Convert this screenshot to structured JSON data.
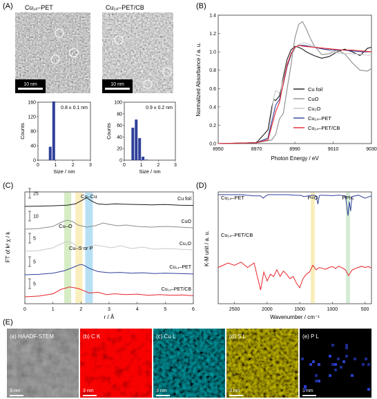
{
  "panel_labels": {
    "A": "(A)",
    "B": "(B)",
    "C": "(C)",
    "D": "(D)",
    "E": "(E)"
  },
  "tem": {
    "left_title": "Cu₁₄–PET",
    "right_title": "Cu₁₄–PET/CB",
    "scalebar": "10 nm"
  },
  "colors": {
    "blue": "#2f3f9a",
    "red": "#e8232a",
    "gray": "#8c8c8c",
    "light": "#c8c8c8",
    "black": "#1a1a1a"
  },
  "chart_data": [
    {
      "type": "bar",
      "title": "",
      "annotation": "0.8 ± 0.1 nm",
      "xlabel": "Size / nm",
      "ylabel": "Counts",
      "xlim": [
        0,
        3
      ],
      "ylim": [
        0,
        160
      ],
      "xticks": [
        "0",
        "1",
        "2",
        "3"
      ],
      "yticks": [
        "0",
        "40",
        "80",
        "120",
        "160"
      ],
      "x": [
        0.7,
        0.9
      ],
      "values": [
        37,
        162
      ]
    },
    {
      "type": "bar",
      "title": "",
      "annotation": "0.9 ± 0.2 nm",
      "xlabel": "Size / nm",
      "ylabel": "Counts",
      "xlim": [
        0,
        3
      ],
      "ylim": [
        0,
        100
      ],
      "xticks": [
        "0",
        "1",
        "2",
        "3"
      ],
      "yticks": [
        "0",
        "20",
        "40",
        "60",
        "80",
        "100"
      ],
      "x": [
        0.5,
        0.7,
        0.9,
        1.1,
        1.3
      ],
      "values": [
        56,
        70,
        38,
        6,
        1
      ]
    },
    {
      "type": "line",
      "xlabel": "Photon Energy / eV",
      "ylabel": "Normalized Absorbance / a. u.",
      "xlim": [
        8950,
        9030
      ],
      "ylim": [
        0,
        1.4
      ],
      "xticks": [
        "8950",
        "8970",
        "8990",
        "9010",
        "9030"
      ],
      "yticks": [
        "0.0",
        "0.2",
        "0.4",
        "0.6",
        "0.8",
        "1.0",
        "1.2",
        "1.4"
      ],
      "legend_position": "bottom-right",
      "series": [
        {
          "name": "Cu foil",
          "color": "#1a1a1a",
          "x": [
            8950,
            8970,
            8976,
            8978,
            8979,
            8980,
            8982,
            8984,
            8986,
            8988,
            8990,
            8992,
            8994,
            8996,
            9000,
            9004,
            9008,
            9012,
            9016,
            9020,
            9024,
            9028,
            9030
          ],
          "y": [
            0,
            0.01,
            0.15,
            0.4,
            0.48,
            0.47,
            0.52,
            0.73,
            0.92,
            1.02,
            1.06,
            1.05,
            1.03,
            1.0,
            0.96,
            0.93,
            0.95,
            1.0,
            1.03,
            1.0,
            0.96,
            1.04,
            1.05
          ]
        },
        {
          "name": "CuO",
          "color": "#8c8c8c",
          "x": [
            8950,
            8970,
            8978,
            8980,
            8982,
            8984,
            8986,
            8988,
            8990,
            8992,
            8994,
            8996,
            8998,
            9000,
            9004,
            9008,
            9012,
            9016,
            9020,
            9024,
            9028,
            9030
          ],
          "y": [
            0,
            0.01,
            0.04,
            0.1,
            0.27,
            0.33,
            0.6,
            0.85,
            1.15,
            1.3,
            1.33,
            1.25,
            1.15,
            1.07,
            0.97,
            0.98,
            1.02,
            0.98,
            0.88,
            0.8,
            0.79,
            0.82
          ]
        },
        {
          "name": "Cu₂O",
          "color": "#c8c8c8",
          "x": [
            8950,
            8970,
            8976,
            8979,
            8980,
            8982,
            8984,
            8986,
            8988,
            8990,
            8992,
            8995,
            9000,
            9005,
            9010,
            9015,
            9020,
            9025,
            9030
          ],
          "y": [
            0,
            0.01,
            0.05,
            0.5,
            0.58,
            0.55,
            0.7,
            0.85,
            0.95,
            1.03,
            1.08,
            1.1,
            1.06,
            1.03,
            1.0,
            0.98,
            0.98,
            0.97,
            0.96
          ]
        },
        {
          "name": "Cu₁₄–PET",
          "color": "#2f3f9a",
          "x": [
            8950,
            8970,
            8976,
            8980,
            8982,
            8984,
            8986,
            8988,
            8990,
            8992,
            8995,
            9000,
            9005,
            9010,
            9015,
            9020,
            9025,
            9030
          ],
          "y": [
            0,
            0.01,
            0.06,
            0.42,
            0.48,
            0.65,
            0.84,
            0.97,
            1.05,
            1.07,
            1.07,
            1.05,
            1.03,
            1.02,
            1.02,
            1.01,
            1.0,
            1.0
          ]
        },
        {
          "name": "Cu₁₄–PET/CB",
          "color": "#e8232a",
          "x": [
            8950,
            8970,
            8976,
            8980,
            8982,
            8984,
            8986,
            8988,
            8990,
            8992,
            8995,
            9000,
            9005,
            9010,
            9015,
            9020,
            9025,
            9030
          ],
          "y": [
            0,
            0.01,
            0.04,
            0.35,
            0.45,
            0.66,
            0.86,
            0.98,
            1.05,
            1.07,
            1.06,
            1.05,
            1.04,
            1.03,
            1.02,
            1.02,
            1.01,
            1.0
          ]
        }
      ]
    },
    {
      "type": "line",
      "xlabel": "r / Å",
      "ylabel": "FT of k² χ / k",
      "xlim": [
        0,
        6
      ],
      "xticks": [
        "0",
        "1",
        "2",
        "3",
        "4",
        "5",
        "6"
      ],
      "bands": [
        {
          "label": "Cu–O",
          "from": 1.4,
          "to": 1.65,
          "color": "#c8e6b0"
        },
        {
          "label": "Cu–S or P",
          "from": 1.8,
          "to": 2.05,
          "color": "#f8e8a8"
        },
        {
          "label": "Cu–Cu",
          "from": 2.15,
          "to": 2.42,
          "color": "#9fd6f0"
        }
      ],
      "scale_labels": [
        "25",
        "10",
        "5",
        "5",
        "5"
      ],
      "series": [
        {
          "name": "Cu foil",
          "color": "#1a1a1a",
          "x": [
            0,
            0.5,
            1.0,
            1.5,
            1.8,
            2.0,
            2.2,
            2.4,
            2.6,
            2.9,
            3.2,
            3.6,
            4.0,
            4.5,
            5.0,
            5.5,
            6.0
          ],
          "y": [
            0,
            0.5,
            1,
            2,
            4,
            9,
            14,
            8,
            4,
            3,
            4,
            3.5,
            3,
            2.5,
            3,
            2,
            1.5
          ]
        },
        {
          "name": "CuO",
          "color": "#8c8c8c",
          "x": [
            0,
            0.5,
            1.0,
            1.3,
            1.5,
            1.7,
            1.9,
            2.2,
            2.5,
            2.8,
            3.0,
            3.3,
            3.6,
            4.0,
            4.5,
            5.0,
            5.5,
            6.0
          ],
          "y": [
            0,
            1,
            4,
            10,
            13,
            11,
            6,
            3,
            5,
            9,
            7,
            5,
            6,
            4,
            3,
            4,
            3,
            2
          ]
        },
        {
          "name": "Cu₂O",
          "color": "#c8c8c8",
          "x": [
            0,
            0.5,
            1.0,
            1.3,
            1.5,
            1.7,
            1.9,
            2.2,
            2.5,
            2.8,
            3.1,
            3.4,
            3.8,
            4.2,
            4.6,
            5.0,
            5.5,
            6.0
          ],
          "y": [
            0,
            1,
            5,
            11,
            14,
            12,
            6,
            5,
            9,
            7,
            5,
            8,
            4,
            6,
            3,
            4,
            3,
            2
          ]
        },
        {
          "name": "Cu₁₄–PET",
          "color": "#2f3f9a",
          "x": [
            0,
            0.5,
            1.0,
            1.4,
            1.7,
            1.9,
            2.0,
            2.1,
            2.3,
            2.6,
            3.0,
            3.4,
            3.8,
            4.2,
            4.6,
            5.0,
            5.5,
            6.0
          ],
          "y": [
            0,
            0.5,
            2,
            5,
            9,
            12,
            13,
            12,
            8,
            4,
            2.5,
            3,
            2,
            2.5,
            1.5,
            2,
            1.5,
            1
          ]
        },
        {
          "name": "Cu₁₄–PET/CB",
          "color": "#e8232a",
          "x": [
            0,
            0.5,
            1.0,
            1.3,
            1.6,
            1.9,
            2.1,
            2.3,
            2.6,
            2.9,
            3.2,
            3.6,
            4.0,
            4.4,
            4.8,
            5.2,
            5.6,
            6.0
          ],
          "y": [
            0,
            1,
            4,
            10,
            13,
            11,
            8,
            5,
            6,
            3,
            4,
            3,
            3.5,
            2,
            3,
            2,
            2.5,
            1.5
          ]
        }
      ]
    },
    {
      "type": "line",
      "xlabel": "Wavenumber / cm⁻¹",
      "ylabel": "K-M unit / a. u.",
      "xlim": [
        2750,
        400
      ],
      "xticks": [
        "2500",
        "2000",
        "1500",
        "1000",
        "500"
      ],
      "bands": [
        {
          "label": "P=O",
          "from": 1330,
          "to": 1270,
          "color": "#f8e8a8"
        },
        {
          "label": "PPh₃",
          "from": 790,
          "to": 730,
          "color": "#c8e6c8"
        }
      ],
      "series": [
        {
          "name": "Cu₁₄–PET",
          "color": "#2f3f9a",
          "x": [
            2750,
            2400,
            2200,
            2100,
            2060,
            2020,
            1980,
            1700,
            1580,
            1480,
            1440,
            1300,
            1250,
            1220,
            1200,
            1180,
            1100,
            1000,
            900,
            800,
            760,
            740,
            720,
            700,
            600,
            500,
            400
          ],
          "y": [
            10,
            10,
            9.5,
            9.5,
            8.5,
            9.5,
            10,
            10,
            9.8,
            9.7,
            9.2,
            9.8,
            9.5,
            6,
            9.6,
            9.8,
            9.7,
            9.6,
            9.8,
            9.5,
            1,
            7,
            3,
            9.2,
            9.8,
            8.5,
            9.5
          ]
        },
        {
          "name": "Cu₁₄–PET/CB",
          "color": "#e8232a",
          "x": [
            2750,
            2600,
            2500,
            2400,
            2300,
            2200,
            2150,
            2100,
            2050,
            2000,
            1950,
            1900,
            1850,
            1800,
            1750,
            1700,
            1650,
            1600,
            1550,
            1500,
            1450,
            1400,
            1350,
            1300,
            1250,
            1200,
            1150,
            1100,
            1050,
            1000,
            950,
            900,
            850,
            800,
            750,
            700,
            650,
            600,
            550,
            500,
            450,
            400
          ],
          "y": [
            5,
            6,
            5.5,
            6.2,
            5,
            6,
            3,
            0,
            4,
            2,
            3.5,
            3,
            4.5,
            3,
            4.2,
            3.5,
            2.5,
            3,
            1.5,
            0.5,
            2.5,
            3.5,
            4,
            5.5,
            4.5,
            5,
            4.8,
            4.6,
            5,
            5.2,
            4.8,
            5.3,
            4.9,
            4.5,
            3.2,
            4.4,
            4.8,
            5,
            5.3,
            5,
            5.2,
            4.9
          ]
        }
      ]
    }
  ],
  "chart_b_labels": {
    "xlabel": "Photon Energy / eV",
    "ylabel": "Normalized Absorbance / a. u.",
    "xticks": [
      "8950",
      "8970",
      "8990",
      "9010",
      "9030"
    ],
    "yticks": [
      "0.0",
      "0.2",
      "0.4",
      "0.6",
      "0.8",
      "1.0",
      "1.2",
      "1.4"
    ]
  },
  "chart_c_labels": {
    "xlabel": "r / Å",
    "ylabel": "FT of k² χ / k",
    "xticks": [
      "0",
      "1",
      "2",
      "3",
      "4",
      "5",
      "6"
    ],
    "band_cuo": "Cu–O",
    "band_cus": "Cu–S or P",
    "band_cucu": "Cu–Cu"
  },
  "chart_d_labels": {
    "xlabel": "Wavenumber / cm⁻¹",
    "ylabel": "K-M unit / a. u.",
    "xticks": [
      "2500",
      "2000",
      "1500",
      "1000",
      "500"
    ],
    "band_po": "P=O",
    "band_pph": "PPh₃",
    "series1": "Cu₁₄–PET",
    "series2": "Cu₁₄–PET/CB"
  },
  "maps": [
    {
      "label": "(a) HAADF-STEM",
      "scalebar": "3 nm"
    },
    {
      "label": "(b) C K",
      "scalebar": "3 nm"
    },
    {
      "label": "(c) Cu L",
      "scalebar": "3 nm"
    },
    {
      "label": "(d) S L",
      "scalebar": "3 nm"
    },
    {
      "label": "(e) P L",
      "scalebar": "3 nm"
    }
  ]
}
